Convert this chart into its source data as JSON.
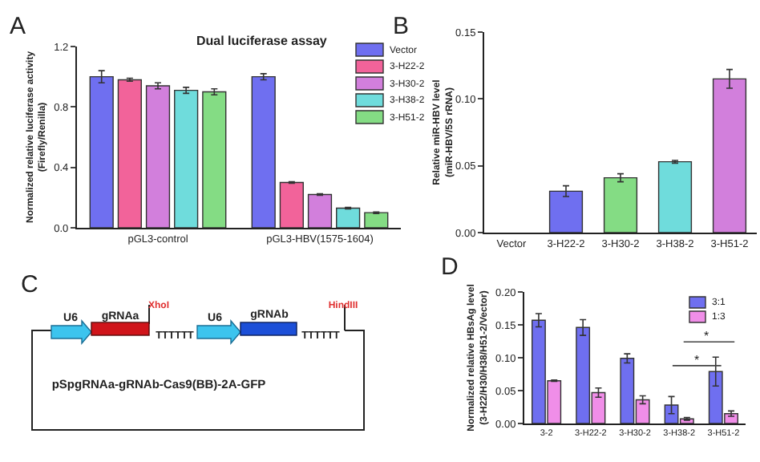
{
  "chart_data": [
    {
      "type": "bar",
      "title": "Dual luciferase assay",
      "ylabel": "Normalized relative luciferase activity\n(Firefly/Renilla)",
      "annotations": [
        "A"
      ],
      "categories": [
        "pGL3-control",
        "pGL3-HBV(1575-1604)"
      ],
      "ylim": [
        0,
        1.2
      ],
      "yticks": [
        {
          "value": 0,
          "label": "0.0"
        },
        0.4,
        0.8,
        1.2
      ],
      "legend": "top right",
      "series": [
        {
          "name": "Vector",
          "color": "#6f6ff0",
          "values": [
            1.0,
            1.0
          ],
          "errors": [
            0.04,
            0.02
          ]
        },
        {
          "name": "3-H22-2",
          "color": "#f2639a",
          "values": [
            0.98,
            0.3
          ],
          "errors": [
            0.01,
            0.005
          ]
        },
        {
          "name": "3-H30-2",
          "color": "#d27fdc",
          "values": [
            0.94,
            0.22
          ],
          "errors": [
            0.02,
            0.005
          ]
        },
        {
          "name": "3-H38-2",
          "color": "#6fdcdc",
          "values": [
            0.91,
            0.13
          ],
          "errors": [
            0.02,
            0.005
          ]
        },
        {
          "name": "3-H51-2",
          "color": "#84dc84",
          "values": [
            0.9,
            0.1
          ],
          "errors": [
            0.02,
            0.005
          ]
        }
      ]
    },
    {
      "type": "bar",
      "ylabel": "Relative miR-HBV level\n(miR-HBV/5S rRNA)",
      "annotations": [
        "B"
      ],
      "categories": [
        "Vector",
        "3-H22-2",
        "3-H30-2",
        "3-H38-2",
        "3-H51-2"
      ],
      "ylim": [
        0,
        0.15
      ],
      "yticks": [
        {
          "value": 0,
          "label": "0.00"
        },
        0.05,
        {
          "value": 0.1,
          "label": "0.10"
        },
        0.15
      ],
      "values": [
        null,
        0.031,
        0.041,
        0.053,
        0.115
      ],
      "colors": [
        "#6f6ff0",
        "#6f6ff0",
        "#84dc84",
        "#6fdcdc",
        "#d27fdc"
      ],
      "errors": [
        null,
        0.004,
        0.003,
        0.001,
        0.007
      ]
    },
    {
      "type": "other",
      "annotations": [
        "C",
        "U6",
        "gRNAa",
        "XhoI",
        "TTTTTT",
        "U6",
        "gRNAb",
        "TTTTTT",
        "HindIII",
        "pSpgRNAa-gRNAb-Cas9(BB)-2A-GFP"
      ]
    },
    {
      "type": "bar",
      "ylabel": "Normalized relative HBsAg level\n(3-H22/H30/H38/H51-2/Vector)",
      "annotations": [
        "D",
        "*",
        "*"
      ],
      "categories": [
        "3-2",
        "3-H22-2",
        "3-H30-2",
        "3-H38-2",
        "3-H51-2"
      ],
      "ylim": [
        0,
        0.2
      ],
      "yticks": [
        {
          "value": 0,
          "label": "0.00"
        },
        0.05,
        {
          "value": 0.1,
          "label": "0.10"
        },
        0.15,
        {
          "value": 0.2,
          "label": "0.20"
        }
      ],
      "legend": "top right",
      "series": [
        {
          "name": "3:1",
          "color": "#6f6ff0",
          "values": [
            0.157,
            0.146,
            0.099,
            0.028,
            0.079
          ],
          "errors": [
            0.01,
            0.012,
            0.007,
            0.013,
            0.022
          ]
        },
        {
          "name": "1:3",
          "color": "#f08ee8",
          "values": [
            0.065,
            0.047,
            0.036,
            0.007,
            0.015
          ],
          "errors": [
            0.001,
            0.007,
            0.006,
            0.002,
            0.004
          ]
        }
      ]
    }
  ]
}
